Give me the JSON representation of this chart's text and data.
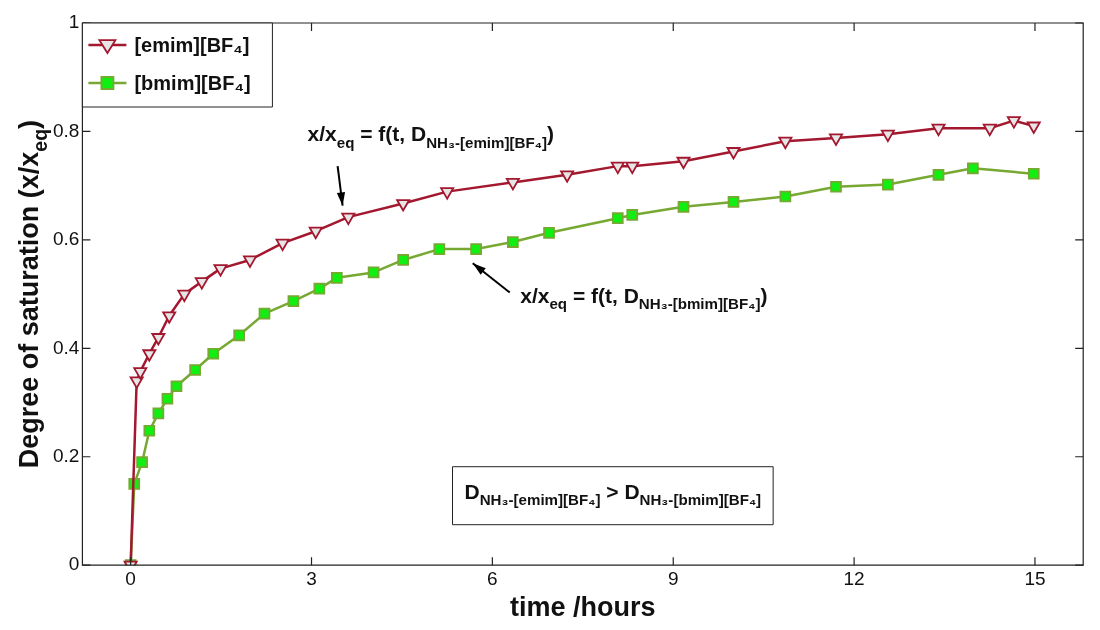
{
  "chart_data": {
    "type": "line",
    "xlabel": "time /hours",
    "ylabel": "Degree of saturation (x/x$_{eq}$)",
    "xlim": [
      -0.8,
      15.8
    ],
    "xticks": [
      0,
      3,
      6,
      9,
      12,
      15
    ],
    "ylim": [
      0,
      1
    ],
    "yticks": [
      0,
      0.2,
      0.4,
      0.6,
      0.8,
      1
    ],
    "grid": false,
    "legend": "top left",
    "series": [
      {
        "name": "[emim][BF₄]",
        "color": "#a3172f",
        "marker": "triangle",
        "x": [
          0,
          0.1,
          0.16,
          0.31,
          0.46,
          0.64,
          0.89,
          1.18,
          1.49,
          1.98,
          2.52,
          3.07,
          3.61,
          4.52,
          5.25,
          6.34,
          7.24,
          8.08,
          8.32,
          9.17,
          10.0,
          10.86,
          11.7,
          12.56,
          13.4,
          14.25,
          14.65,
          14.98
        ],
        "values": [
          0,
          0.34,
          0.357,
          0.39,
          0.42,
          0.46,
          0.5,
          0.523,
          0.547,
          0.563,
          0.594,
          0.616,
          0.642,
          0.667,
          0.689,
          0.706,
          0.72,
          0.736,
          0.736,
          0.745,
          0.763,
          0.782,
          0.788,
          0.795,
          0.806,
          0.806,
          0.82,
          0.81
        ]
      },
      {
        "name": "[bmim][BF₄]",
        "color": "#76a832",
        "marker": "square",
        "x": [
          0,
          0.06,
          0.19,
          0.31,
          0.46,
          0.61,
          0.76,
          1.07,
          1.37,
          1.8,
          2.22,
          2.7,
          3.13,
          3.42,
          4.03,
          4.52,
          5.12,
          5.73,
          6.34,
          6.94,
          8.08,
          8.32,
          9.17,
          10.0,
          10.86,
          11.7,
          12.56,
          13.4,
          13.97,
          14.98
        ],
        "values": [
          0,
          0.15,
          0.19,
          0.248,
          0.28,
          0.307,
          0.33,
          0.36,
          0.39,
          0.424,
          0.464,
          0.487,
          0.51,
          0.53,
          0.54,
          0.563,
          0.583,
          0.583,
          0.596,
          0.613,
          0.64,
          0.646,
          0.661,
          0.67,
          0.68,
          0.698,
          0.702,
          0.72,
          0.732,
          0.722
        ]
      }
    ],
    "annotations": [
      "x/x$_{eq}$ = f(t, D$_{NH₃-[emim][BF₄]}$)",
      "x/x$_{eq}$ = f(t, D$_{NH₃-[bmim][BF₄]}$)",
      "D$_{NH₃-[emim][BF₄]}$ > D$_{NH₃-[bmim][BF₄]}$"
    ]
  }
}
